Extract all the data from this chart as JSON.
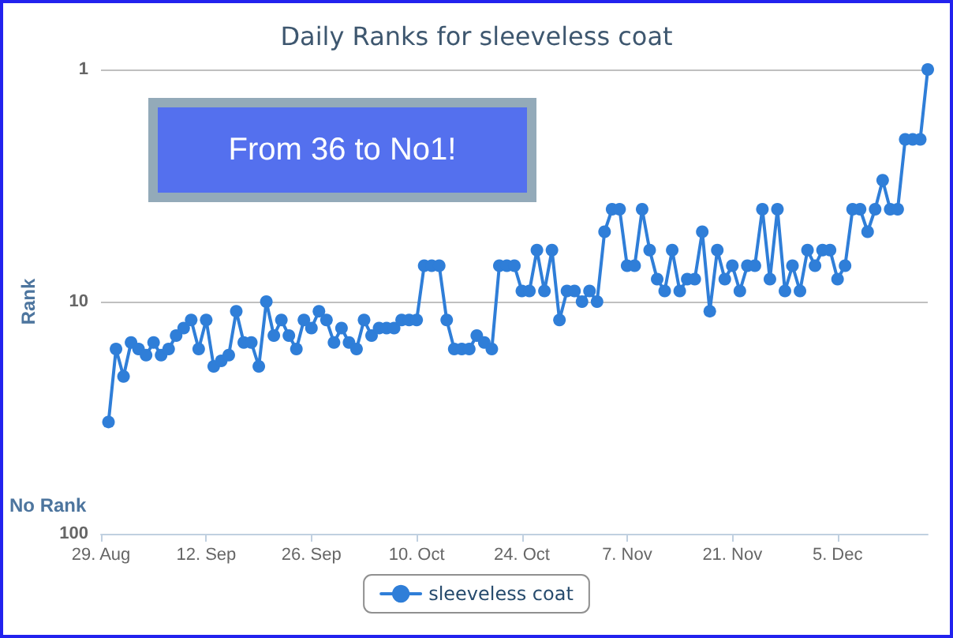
{
  "chart_data": {
    "type": "line",
    "title": "Daily Ranks for sleeveless coat",
    "ylabel": "Rank",
    "annotations": [
      "From 36 to No1!",
      "No Rank"
    ],
    "x": [
      "--08-30",
      "--08-31",
      "--09-01",
      "--09-02",
      "--09-03",
      "--09-04",
      "--09-05",
      "--09-06",
      "--09-07",
      "--09-08",
      "--09-09",
      "--09-10",
      "--09-11",
      "--09-12",
      "--09-13",
      "--09-14",
      "--09-15",
      "--09-16",
      "--09-17",
      "--09-18",
      "--09-19",
      "--09-20",
      "--09-21",
      "--09-22",
      "--09-23",
      "--09-24",
      "--09-25",
      "--09-26",
      "--09-27",
      "--09-28",
      "--09-29",
      "--09-30",
      "--10-01",
      "--10-02",
      "--10-03",
      "--10-04",
      "--10-05",
      "--10-06",
      "--10-07",
      "--10-08",
      "--10-09",
      "--10-10",
      "--10-11",
      "--10-12",
      "--10-13",
      "--10-14",
      "--10-15",
      "--10-16",
      "--10-17",
      "--10-18",
      "--10-19",
      "--10-20",
      "--10-21",
      "--10-22",
      "--10-23",
      "--10-24",
      "--10-25",
      "--10-26",
      "--10-27",
      "--10-28",
      "--10-29",
      "--10-30",
      "--10-31",
      "--11-01",
      "--11-02",
      "--11-03",
      "--11-04",
      "--11-05",
      "--11-06",
      "--11-07",
      "--11-08",
      "--11-09",
      "--11-10",
      "--11-11",
      "--11-12",
      "--11-13",
      "--11-14",
      "--11-15",
      "--11-16",
      "--11-17",
      "--11-18",
      "--11-19",
      "--11-20",
      "--11-21",
      "--11-22",
      "--11-23",
      "--11-24",
      "--11-25",
      "--11-26",
      "--11-27",
      "--11-28",
      "--11-29",
      "--11-30",
      "--12-01",
      "--12-02",
      "--12-03",
      "--12-04",
      "--12-05",
      "--12-06",
      "--12-07",
      "--12-08",
      "--12-09",
      "--12-10",
      "--12-11",
      "--12-12",
      "--12-13",
      "--12-14",
      "--12-15",
      "--12-16",
      "--12-17"
    ],
    "series": [
      {
        "name": "sleeveless coat",
        "color": "#2f7ed8",
        "values": [
          33,
          16,
          21,
          15,
          16,
          17,
          15,
          17,
          16,
          14,
          13,
          12,
          16,
          12,
          19,
          18,
          17,
          11,
          15,
          15,
          19,
          10,
          14,
          12,
          14,
          16,
          12,
          13,
          11,
          12,
          15,
          13,
          15,
          16,
          12,
          14,
          13,
          13,
          13,
          12,
          12,
          12,
          7,
          7,
          7,
          12,
          16,
          16,
          16,
          14,
          15,
          16,
          7,
          7,
          7,
          9,
          9,
          6,
          9,
          6,
          12,
          9,
          9,
          10,
          9,
          10,
          5,
          4,
          4,
          7,
          7,
          4,
          6,
          8,
          9,
          6,
          9,
          8,
          8,
          5,
          11,
          6,
          8,
          7,
          9,
          7,
          7,
          4,
          8,
          4,
          9,
          7,
          9,
          6,
          7,
          6,
          6,
          8,
          7,
          4,
          4,
          5,
          4,
          3,
          4,
          4,
          2,
          2,
          2,
          1
        ]
      }
    ],
    "xlim": [
      "--08-29",
      "--12-17"
    ],
    "xticks": [
      {
        "value": "--08-29",
        "label": "29. Aug"
      },
      {
        "value": "--09-12",
        "label": "12. Sep"
      },
      {
        "value": "--09-26",
        "label": "26. Sep"
      },
      {
        "value": "--10-10",
        "label": "10. Oct"
      },
      {
        "value": "--10-24",
        "label": "24. Oct"
      },
      {
        "value": "--11-07",
        "label": "7. Nov"
      },
      {
        "value": "--11-21",
        "label": "21. Nov"
      },
      {
        "value": "--12-05",
        "label": "5. Dec"
      }
    ],
    "ylim": [
      100,
      1
    ],
    "yticks": [
      1,
      10,
      100
    ],
    "log": "y",
    "grid": "y",
    "legend": "bottom",
    "marker": "circle",
    "line_style": "solid"
  }
}
